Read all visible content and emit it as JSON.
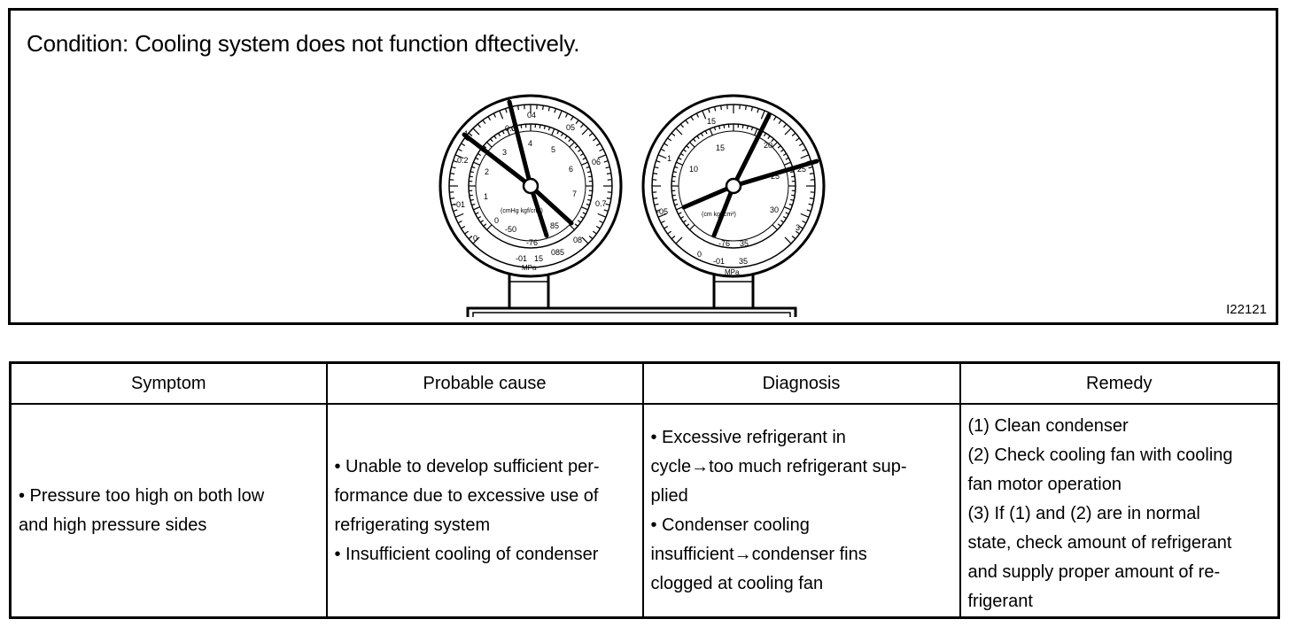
{
  "figure": {
    "condition": "Condition: Cooling system does not function dftectively.",
    "figure_id": "I22121",
    "low_gauge": {
      "outer_scale": [
        "0.3",
        "04",
        "05",
        "06",
        "0.7",
        "08",
        "085",
        "15",
        "-01",
        "0",
        "-01",
        "0.2",
        "1"
      ],
      "inner_scale": [
        "3",
        "4",
        "5",
        "6",
        "7",
        "85",
        "-76",
        "-50",
        "0",
        "1",
        "2"
      ],
      "unit_inner": "(cmHg kgf/cm²)",
      "unit_outer": "MPa"
    },
    "high_gauge": {
      "outer_scale": [
        "15",
        "2",
        "25",
        "3",
        "35",
        "-01",
        "0",
        "-05",
        "1"
      ],
      "inner_scale": [
        "15",
        "20",
        "25",
        "30",
        "35",
        "-76",
        "10"
      ],
      "unit_inner": "(cm kgf/cm²)",
      "unit_outer": "MPa"
    }
  },
  "table": {
    "headers": [
      "Symptom",
      "Probable cause",
      "Diagnosis",
      "Remedy"
    ],
    "symptom": [
      "• Pressure too high on both low",
      "and high pressure sides"
    ],
    "cause": [
      "• Unable to develop sufficient per-",
      "formance due to excessive use of",
      "refrigerating system",
      "• Insufficient cooling of condenser"
    ],
    "diagnosis": [
      "• Excessive refrigerant in",
      "cycle→too much refrigerant sup-",
      "plied",
      "• Condenser cooling",
      "insufficient→condenser fins",
      "clogged at cooling fan"
    ],
    "remedy": [
      "(1) Clean condenser",
      "(2) Check cooling fan with cooling",
      "fan motor operation",
      "(3) If (1) and (2) are in normal",
      "state, check amount of refrigerant",
      "and supply proper amount of re-",
      "frigerant"
    ]
  }
}
